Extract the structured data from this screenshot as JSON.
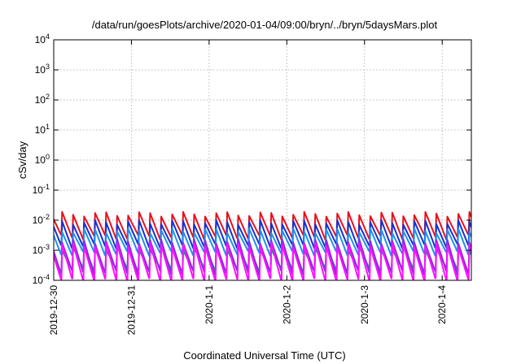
{
  "chart_data": {
    "type": "line",
    "title": "/data/run/goesPlots/archive/2020-01-04/09:00/bryn/../bryn/5daysMars.plot",
    "xlabel": "Coordinated Universal Time (UTC)",
    "ylabel": "cSv/day",
    "y_scale": "log",
    "ylim": [
      0.0001,
      10000
    ],
    "y_ticks": [
      {
        "base": "10",
        "exp": "-4"
      },
      {
        "base": "10",
        "exp": "-3"
      },
      {
        "base": "10",
        "exp": "-2"
      },
      {
        "base": "10",
        "exp": "-1"
      },
      {
        "base": "10",
        "exp": "0"
      },
      {
        "base": "10",
        "exp": "1"
      },
      {
        "base": "10",
        "exp": "2"
      },
      {
        "base": "10",
        "exp": "3"
      },
      {
        "base": "10",
        "exp": "4"
      }
    ],
    "x_range": [
      "2019-12-30T00:00",
      "2020-01-04T09:00"
    ],
    "x_ticks": [
      {
        "label": "2019-12-30",
        "date": "2019-12-30"
      },
      {
        "label": "2019-12-31",
        "date": "2019-12-31"
      },
      {
        "label": "2020-1-1",
        "date": "2020-01-01"
      },
      {
        "label": "2020-1-2",
        "date": "2020-01-02"
      },
      {
        "label": "2020-1-3",
        "date": "2020-01-03"
      },
      {
        "label": "2020-1-4",
        "date": "2020-01-04"
      }
    ],
    "grid": true,
    "series": [
      {
        "color": "#e8101c",
        "cycle_hours": 3.4,
        "peak": 0.016,
        "trough": 0.0028
      },
      {
        "color": "#1a2fd0",
        "cycle_hours": 3.4,
        "peak": 0.0085,
        "trough": 0.0014
      },
      {
        "color": "#1f8ff0",
        "cycle_hours": 3.4,
        "peak": 0.0045,
        "trough": 0.0008
      },
      {
        "color": "#1e8a86",
        "cycle_hours": 3.4,
        "peak": 0.0012,
        "trough": 0.00022
      },
      {
        "color": "#8a2be2",
        "cycle_hours": 3.4,
        "peak": 0.002,
        "trough": 0.00018
      },
      {
        "color": "#ff10ff",
        "cycle_hours": 3.4,
        "peak": 0.0015,
        "trough": 0.0001
      }
    ]
  }
}
